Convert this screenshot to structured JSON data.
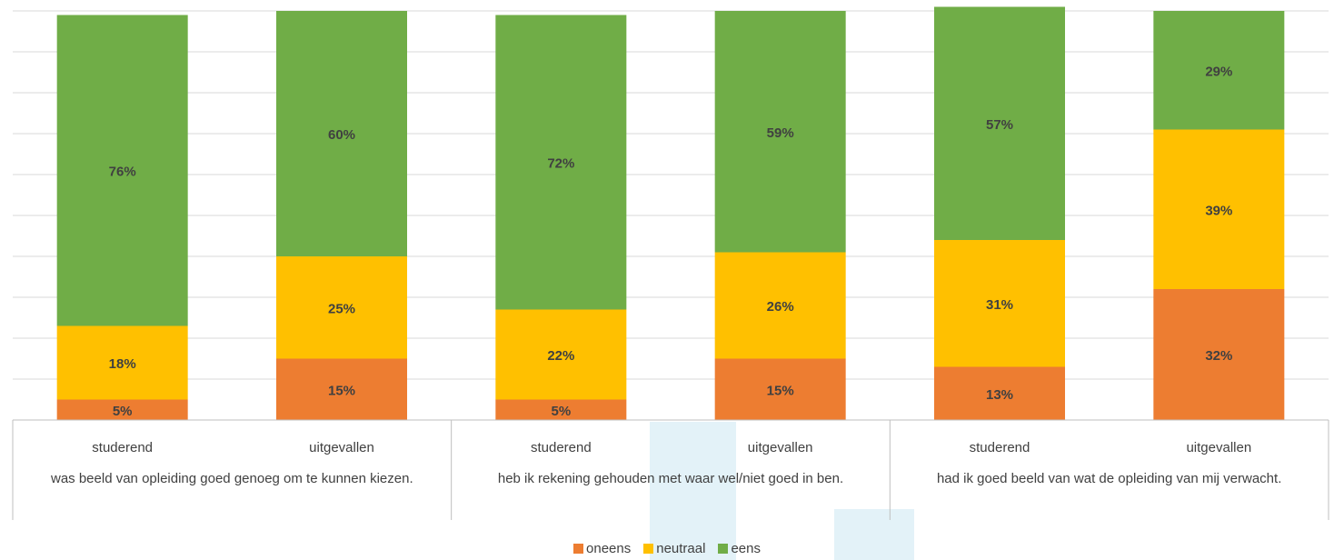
{
  "chart_data": {
    "type": "stacked-bar",
    "groups": [
      {
        "label": "was  beeld van opleiding goed genoeg om te kunnen kiezen.",
        "categories": [
          "studerend",
          "uitgevallen"
        ]
      },
      {
        "label": "heb ik rekening gehouden met waar  wel/niet goed in ben.",
        "categories": [
          "studerend",
          "uitgevallen"
        ]
      },
      {
        "label": "had ik  goed beeld van wat de opleiding van mij verwacht.",
        "categories": [
          "studerend",
          "uitgevallen"
        ]
      }
    ],
    "series": [
      {
        "name": "oneens",
        "color": "#ed7d31",
        "values": [
          5,
          15,
          5,
          15,
          13,
          32
        ],
        "labels": [
          "5%",
          "15%",
          "5%",
          "15%",
          "13%",
          "32%"
        ]
      },
      {
        "name": "neutraal",
        "color": "#ffc000",
        "values": [
          18,
          25,
          22,
          26,
          31,
          39
        ],
        "labels": [
          "18%",
          "25%",
          "22%",
          "26%",
          "31%",
          "39%"
        ]
      },
      {
        "name": "eens",
        "color": "#70ad47",
        "values": [
          76,
          60,
          72,
          59,
          57,
          29
        ],
        "labels": [
          "76%",
          "60%",
          "72%",
          "59%",
          "57%",
          "29%"
        ]
      }
    ],
    "ylim": [
      0,
      100
    ],
    "grid": true,
    "legend_position": "bottom"
  }
}
